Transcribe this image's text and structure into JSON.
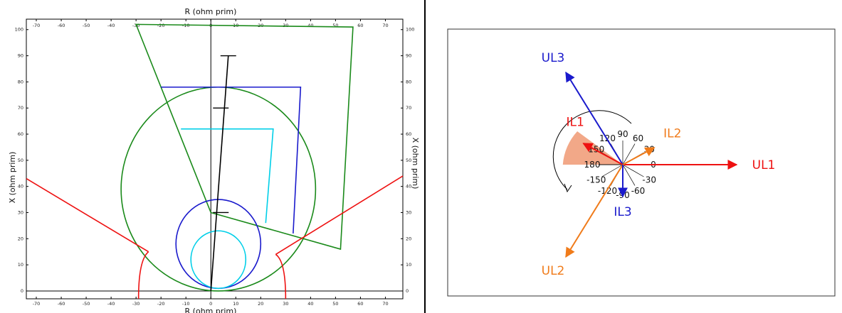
{
  "impedance_plot": {
    "top_axis_label": "R (ohm prim)",
    "bottom_axis_label": "R (ohm prim)",
    "left_axis_label": "X (ohm prim)",
    "right_axis_label": "X (ohm prim)",
    "x_ticks": [
      -70,
      -60,
      -50,
      -40,
      -30,
      -20,
      -10,
      0,
      10,
      20,
      30,
      40,
      50,
      60,
      70
    ],
    "y_ticks": [
      0,
      10,
      20,
      30,
      40,
      50,
      60,
      70,
      80,
      90,
      100
    ],
    "xlim": [
      -74,
      77
    ],
    "ylim": [
      -3,
      104
    ],
    "colors": {
      "green": "#1a8a1a",
      "blue": "#1a1acc",
      "cyan": "#00cfe8",
      "red": "#ee1111",
      "black": "#000000"
    },
    "green_quad": [
      [
        -30,
        102
      ],
      [
        57,
        101
      ],
      [
        52,
        16
      ],
      [
        0,
        30
      ]
    ],
    "green_circle": {
      "cx": 3,
      "cy": 39,
      "r": 39
    },
    "blue_zone": [
      [
        -20,
        78
      ],
      [
        36,
        78
      ],
      [
        33,
        22
      ]
    ],
    "cyan_zone": [
      [
        -12,
        62
      ],
      [
        25,
        62
      ],
      [
        22,
        26
      ]
    ],
    "blue_circle": {
      "cx": 3,
      "cy": 18,
      "r": 17
    },
    "cyan_circle": {
      "cx": 3,
      "cy": 12,
      "r": 11
    },
    "red_left": [
      [
        -74,
        43
      ],
      [
        -25,
        15
      ]
    ],
    "red_right": [
      [
        77,
        44
      ],
      [
        26,
        14
      ]
    ],
    "red_left_arc": {
      "x0": -25,
      "y0": 15,
      "x1": -29,
      "y1": -3
    },
    "red_right_arc": {
      "x0": 26,
      "y0": 14,
      "x1": 30,
      "y1": -3
    },
    "line_impedance": {
      "from": [
        0,
        0
      ],
      "to": [
        7,
        90
      ],
      "marks": [
        [
          7,
          90
        ],
        [
          4,
          70
        ],
        [
          4,
          30
        ]
      ]
    }
  },
  "phasor_diagram": {
    "phasors": [
      {
        "name": "UL1",
        "angle": 0,
        "magnitude": 1.0,
        "color": "#ee1111"
      },
      {
        "name": "UL2",
        "angle": -120,
        "magnitude": 1.0,
        "color": "#f07b1a"
      },
      {
        "name": "UL3",
        "angle": 120,
        "magnitude": 1.0,
        "color": "#1a1acc"
      },
      {
        "name": "IL1",
        "angle": 150,
        "magnitude": 0.4,
        "color": "#ee1111"
      },
      {
        "name": "IL2",
        "angle": 30,
        "magnitude": 0.32,
        "color": "#f07b1a"
      },
      {
        "name": "IL3",
        "angle": -90,
        "magnitude": 0.3,
        "color": "#1a1acc"
      }
    ],
    "angle_labels": [
      "0",
      "30",
      "60",
      "90",
      "120",
      "150",
      "180",
      "-150",
      "-120",
      "-90",
      "-60",
      "-30"
    ],
    "sector": {
      "from": 145,
      "to": 180,
      "color": "#f2a888"
    }
  }
}
